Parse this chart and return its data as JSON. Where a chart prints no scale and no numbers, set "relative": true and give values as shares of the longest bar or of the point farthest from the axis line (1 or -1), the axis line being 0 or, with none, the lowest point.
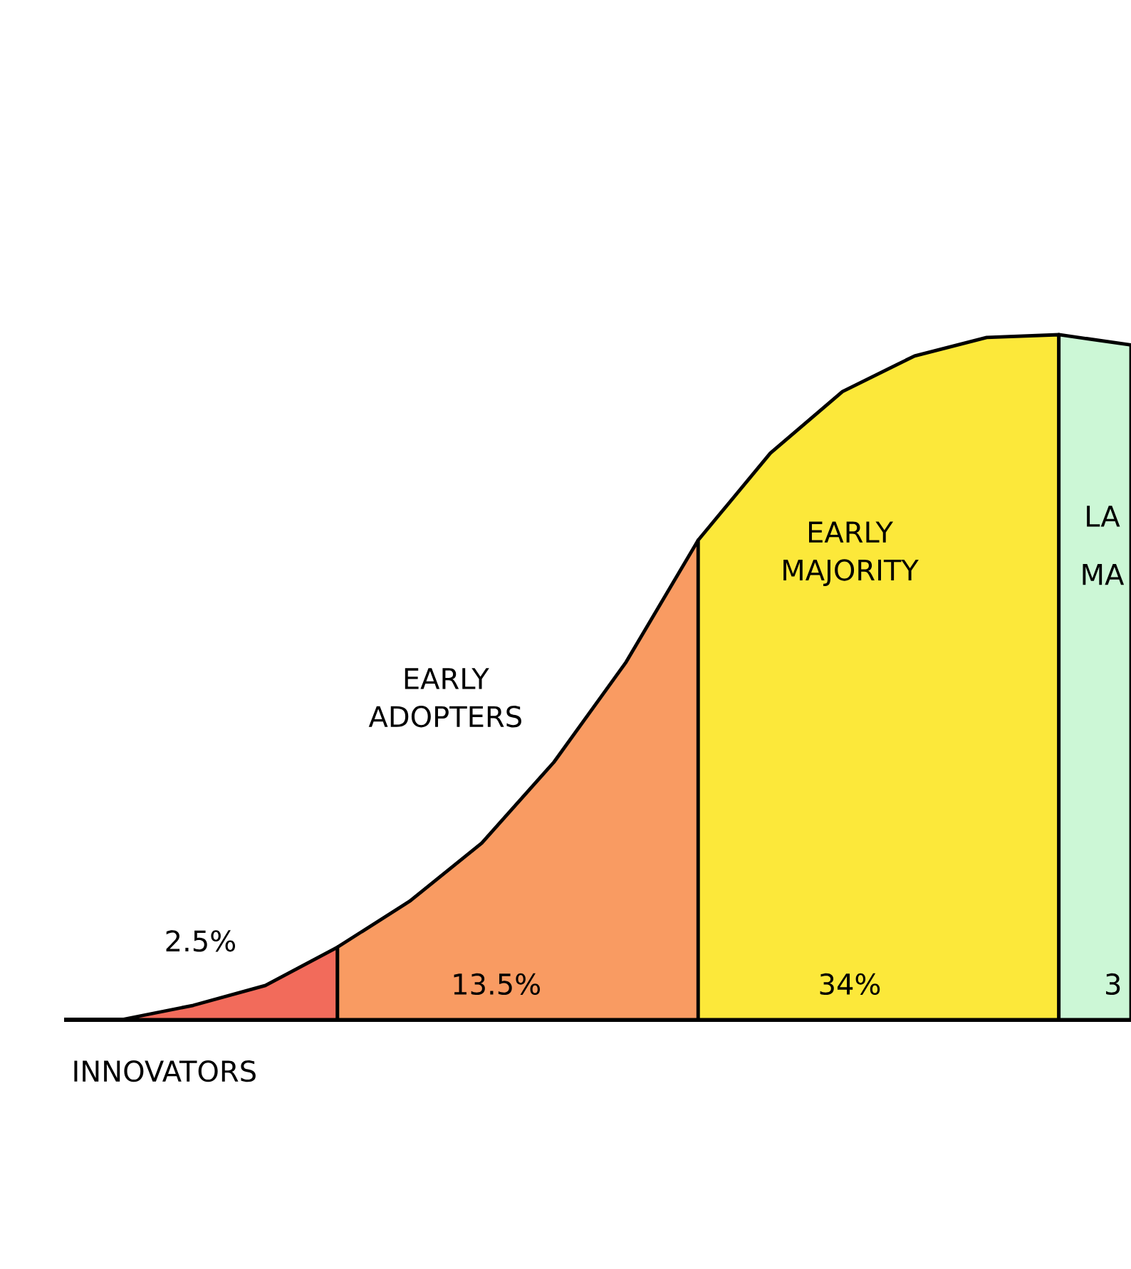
{
  "chart_data": {
    "type": "area",
    "relative": true,
    "categories": [
      null,
      null,
      null,
      null,
      null,
      null,
      null,
      null,
      null,
      null,
      null,
      null,
      null,
      null,
      null
    ],
    "series": [
      {
        "color": "#f26b5b",
        "values": [
          0,
          0.021,
          0.05,
          0.106,
          null,
          null,
          null,
          null,
          null,
          null,
          null,
          null,
          null,
          null,
          null
        ]
      },
      {
        "color": "#f99b62",
        "values": [
          null,
          null,
          null,
          0.106,
          0.173,
          0.258,
          0.376,
          0.522,
          0.7,
          null,
          null,
          null,
          null,
          null,
          null
        ]
      },
      {
        "color": "#fce83a",
        "values": [
          null,
          null,
          null,
          null,
          null,
          null,
          null,
          null,
          0.7,
          0.827,
          0.917,
          0.969,
          0.996,
          1,
          null
        ]
      },
      {
        "color": "#ccf7d6",
        "values": [
          null,
          null,
          null,
          null,
          null,
          null,
          null,
          null,
          null,
          null,
          null,
          null,
          null,
          1,
          0.985
        ]
      }
    ],
    "annotations": [
      "INNOVATORS",
      "EARLY ADOPTERS",
      "EARLY MAJORITY",
      "LA",
      "MA",
      "2.5%",
      "13.5%",
      "34%",
      "3"
    ]
  }
}
